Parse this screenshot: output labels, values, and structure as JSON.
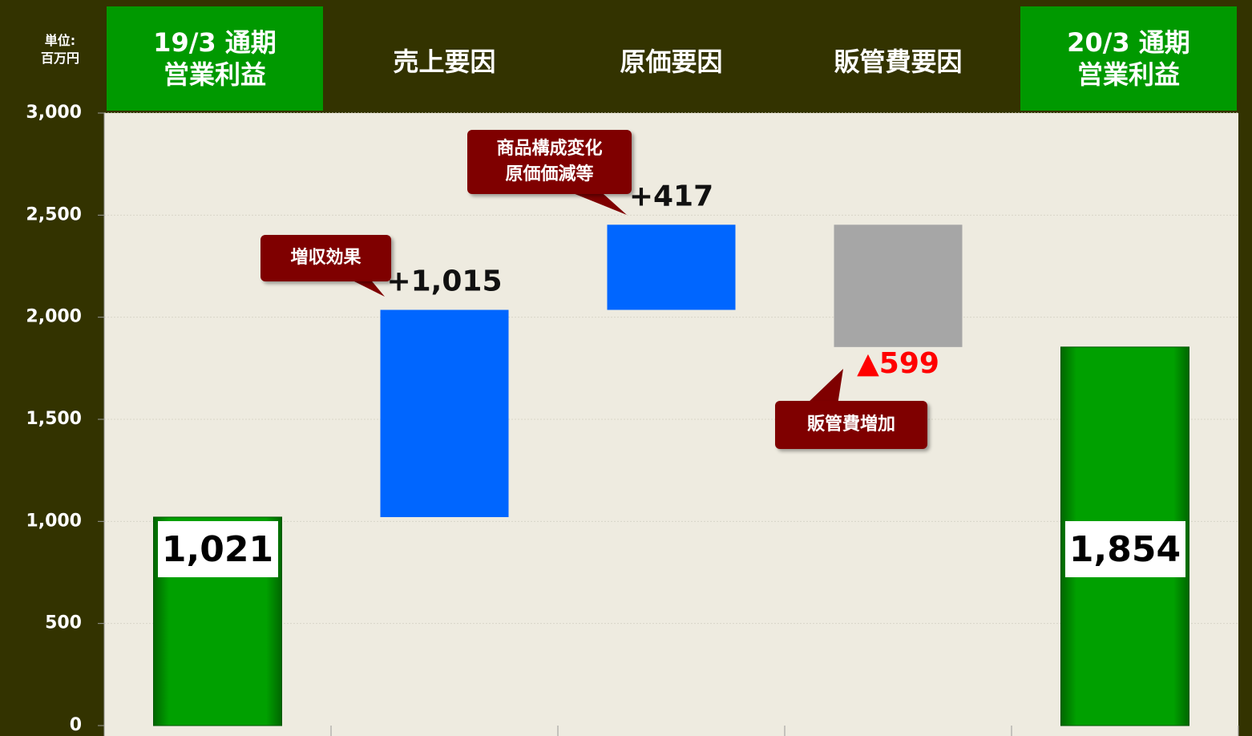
{
  "chart_data": {
    "type": "waterfall",
    "unit_label": "単位:\n百万円",
    "categories": [
      "19/3 通期\n営業利益",
      "売上要因",
      "原価要因",
      "販管費要因",
      "20/3 通期\n営業利益"
    ],
    "measures": [
      "absolute",
      "relative",
      "relative",
      "relative",
      "total"
    ],
    "values": [
      1021,
      1015,
      417,
      -599,
      1854
    ],
    "value_labels": [
      "1,021",
      "+1,015",
      "+417",
      "▲599",
      "1,854"
    ],
    "colors": [
      "#0a9a0a",
      "#0066ff",
      "#0066ff",
      "#a6a6a6",
      "#0a9a0a"
    ],
    "value_label_colors": [
      "#000000",
      "#111111",
      "#111111",
      "#ff0000",
      "#000000"
    ],
    "header_highlight": [
      true,
      false,
      false,
      false,
      true
    ],
    "annotations": [
      "増収効果",
      "商品構成変化\n原価価減等",
      "販管費増加"
    ],
    "ylim": [
      0,
      3000
    ],
    "yticks": [
      {
        "value": 0,
        "label": "0"
      },
      {
        "value": 500,
        "label": "500"
      },
      {
        "value": 1000,
        "label": "1,000"
      },
      {
        "value": 1500,
        "label": "1,500"
      },
      {
        "value": 2000,
        "label": "2,000"
      },
      {
        "value": 2500,
        "label": "2,500"
      },
      {
        "value": 3000,
        "label": "3,000"
      }
    ],
    "grid": true
  }
}
